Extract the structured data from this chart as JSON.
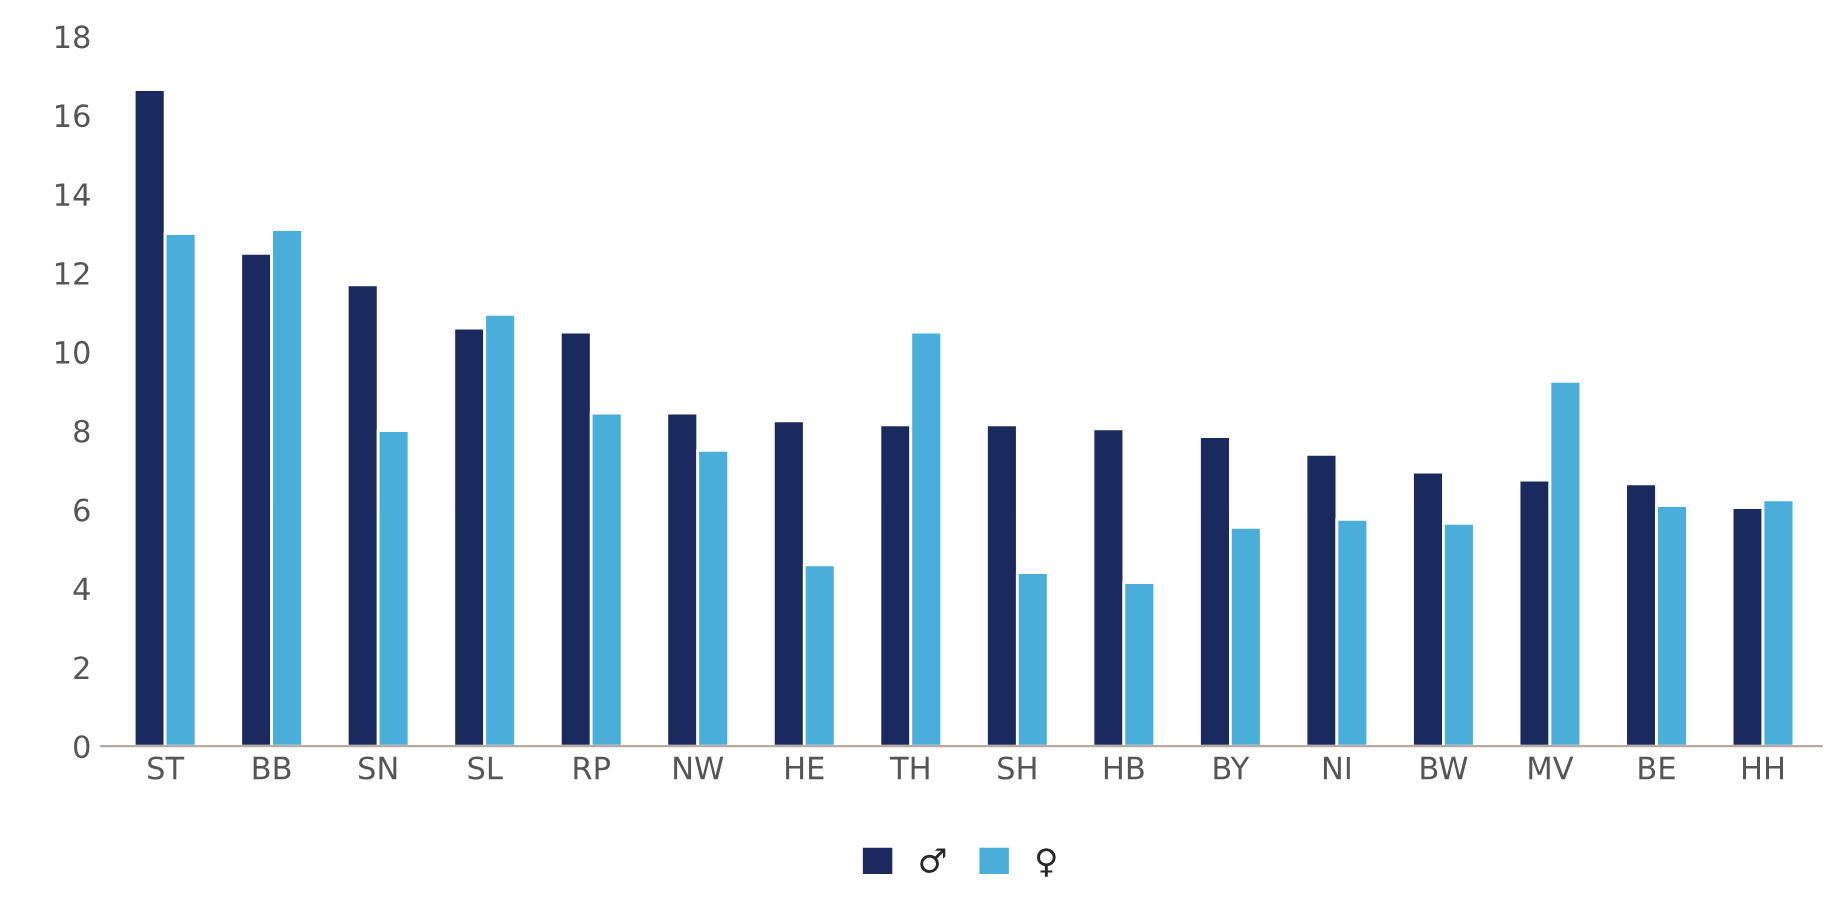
{
  "chart_data": {
    "type": "bar",
    "categories": [
      "ST",
      "BB",
      "SN",
      "SL",
      "RP",
      "NW",
      "HE",
      "TH",
      "SH",
      "HB",
      "BY",
      "NI",
      "BW",
      "MV",
      "BE",
      "HH"
    ],
    "series": [
      {
        "name": "♂",
        "color": "#1b2a5e",
        "values": [
          16.65,
          12.5,
          11.7,
          10.6,
          10.5,
          8.45,
          8.25,
          8.15,
          8.15,
          8.05,
          7.85,
          7.4,
          6.95,
          6.75,
          6.65,
          6.05
        ]
      },
      {
        "name": "♀",
        "color": "#4aaedb",
        "values": [
          13.0,
          13.1,
          8.0,
          10.95,
          8.45,
          7.5,
          4.6,
          10.5,
          4.4,
          4.15,
          5.55,
          5.75,
          5.65,
          9.25,
          6.1,
          6.25
        ]
      }
    ],
    "ylim": [
      0,
      18
    ],
    "yticks": [
      0,
      2,
      4,
      6,
      8,
      10,
      12,
      14,
      16,
      18
    ],
    "legend": "bottom",
    "grid": false
  }
}
